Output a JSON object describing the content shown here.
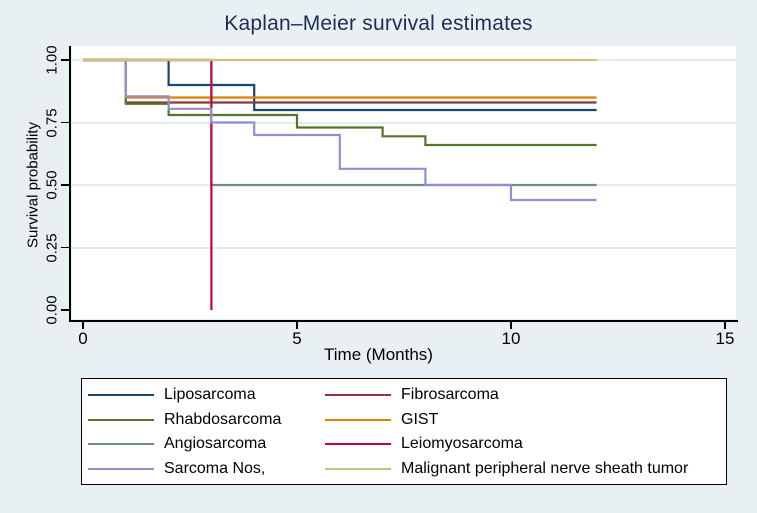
{
  "title": "Kaplan–Meier survival estimates",
  "y_axis": {
    "label": "Survival probability",
    "ticks": [
      "0.00",
      "0.25",
      "0.50",
      "0.75",
      "1.00"
    ]
  },
  "x_axis": {
    "label": "Time (Months)",
    "ticks": [
      "0",
      "5",
      "10",
      "15"
    ]
  },
  "colors": {
    "background": "#e9f0f4",
    "plot_background": "#ffffff",
    "grid": "#e2ecf1",
    "axis": "#000000",
    "title_text": "#1e2d53",
    "legend_background": "#ffffff",
    "legend_border": "#000000"
  },
  "chart_data": {
    "type": "line",
    "subtype": "kaplan-meier-step",
    "title": "Kaplan–Meier survival estimates",
    "xlabel": "Time (Months)",
    "ylabel": "Survival probability",
    "xlim": [
      0,
      15
    ],
    "ylim": [
      0,
      1
    ],
    "x_ticks": [
      0,
      5,
      10,
      15
    ],
    "y_ticks": [
      0,
      0.25,
      0.5,
      0.75,
      1
    ],
    "grid": "horizontal",
    "legend_position": "bottom",
    "legend_columns": 2,
    "series": [
      {
        "name": "Liposarcoma",
        "color": "#1a476f",
        "points": [
          [
            0,
            1
          ],
          [
            2,
            1
          ],
          [
            2,
            0.9
          ],
          [
            4,
            0.9
          ],
          [
            4,
            0.8
          ],
          [
            12,
            0.8
          ]
        ]
      },
      {
        "name": "Fibrosarcoma",
        "color": "#90353b",
        "points": [
          [
            0,
            1
          ],
          [
            1,
            1
          ],
          [
            1,
            0.83
          ],
          [
            12,
            0.83
          ]
        ]
      },
      {
        "name": "Rhabdosarcoma",
        "color": "#55752f",
        "points": [
          [
            0,
            1
          ],
          [
            1,
            1
          ],
          [
            1,
            0.825
          ],
          [
            2,
            0.825
          ],
          [
            2,
            0.78
          ],
          [
            5,
            0.78
          ],
          [
            5,
            0.73
          ],
          [
            7,
            0.73
          ],
          [
            7,
            0.695
          ],
          [
            8,
            0.695
          ],
          [
            8,
            0.66
          ],
          [
            12,
            0.66
          ]
        ]
      },
      {
        "name": "GIST",
        "color": "#e37e00",
        "points": [
          [
            0,
            1
          ],
          [
            1,
            1
          ],
          [
            1,
            0.85
          ],
          [
            12,
            0.85
          ]
        ]
      },
      {
        "name": "Angiosarcoma",
        "color": "#6e8e84",
        "points": [
          [
            0,
            1
          ],
          [
            3,
            1
          ],
          [
            3,
            0.5
          ],
          [
            12,
            0.5
          ]
        ]
      },
      {
        "name": "Leiomyosarcoma",
        "color": "#c10534",
        "points": [
          [
            0,
            1
          ],
          [
            3,
            1
          ],
          [
            3,
            0
          ]
        ]
      },
      {
        "name": "Sarcoma Nos,",
        "color": "#938dd2",
        "points": [
          [
            0,
            1
          ],
          [
            1,
            1
          ],
          [
            1,
            0.855
          ],
          [
            2,
            0.855
          ],
          [
            2,
            0.805
          ],
          [
            3,
            0.805
          ],
          [
            3,
            0.75
          ],
          [
            4,
            0.75
          ],
          [
            4,
            0.7
          ],
          [
            6,
            0.7
          ],
          [
            6,
            0.565
          ],
          [
            8,
            0.565
          ],
          [
            8,
            0.5
          ],
          [
            10,
            0.5
          ],
          [
            10,
            0.44
          ],
          [
            12,
            0.44
          ]
        ]
      },
      {
        "name": "Malignant peripheral nerve sheath tumor",
        "color": "#cac27e",
        "points": [
          [
            0,
            1
          ],
          [
            12,
            1
          ]
        ]
      }
    ]
  }
}
